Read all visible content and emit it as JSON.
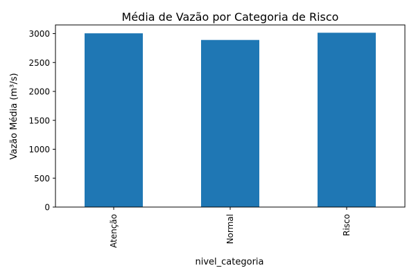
{
  "chart_data": {
    "type": "bar",
    "title": "Média de Vazão por Categoria de Risco",
    "xlabel": "nivel_categoria",
    "ylabel": "Vazão Média (m³/s)",
    "categories": [
      "Atenção",
      "Normal",
      "Risco"
    ],
    "values": [
      3005,
      2890,
      3015
    ],
    "ylim": [
      0,
      3150
    ],
    "yticks": [
      0,
      500,
      1000,
      1500,
      2000,
      2500,
      3000
    ],
    "grid": false,
    "legend": "none",
    "bar_color": "#1f77b4"
  }
}
